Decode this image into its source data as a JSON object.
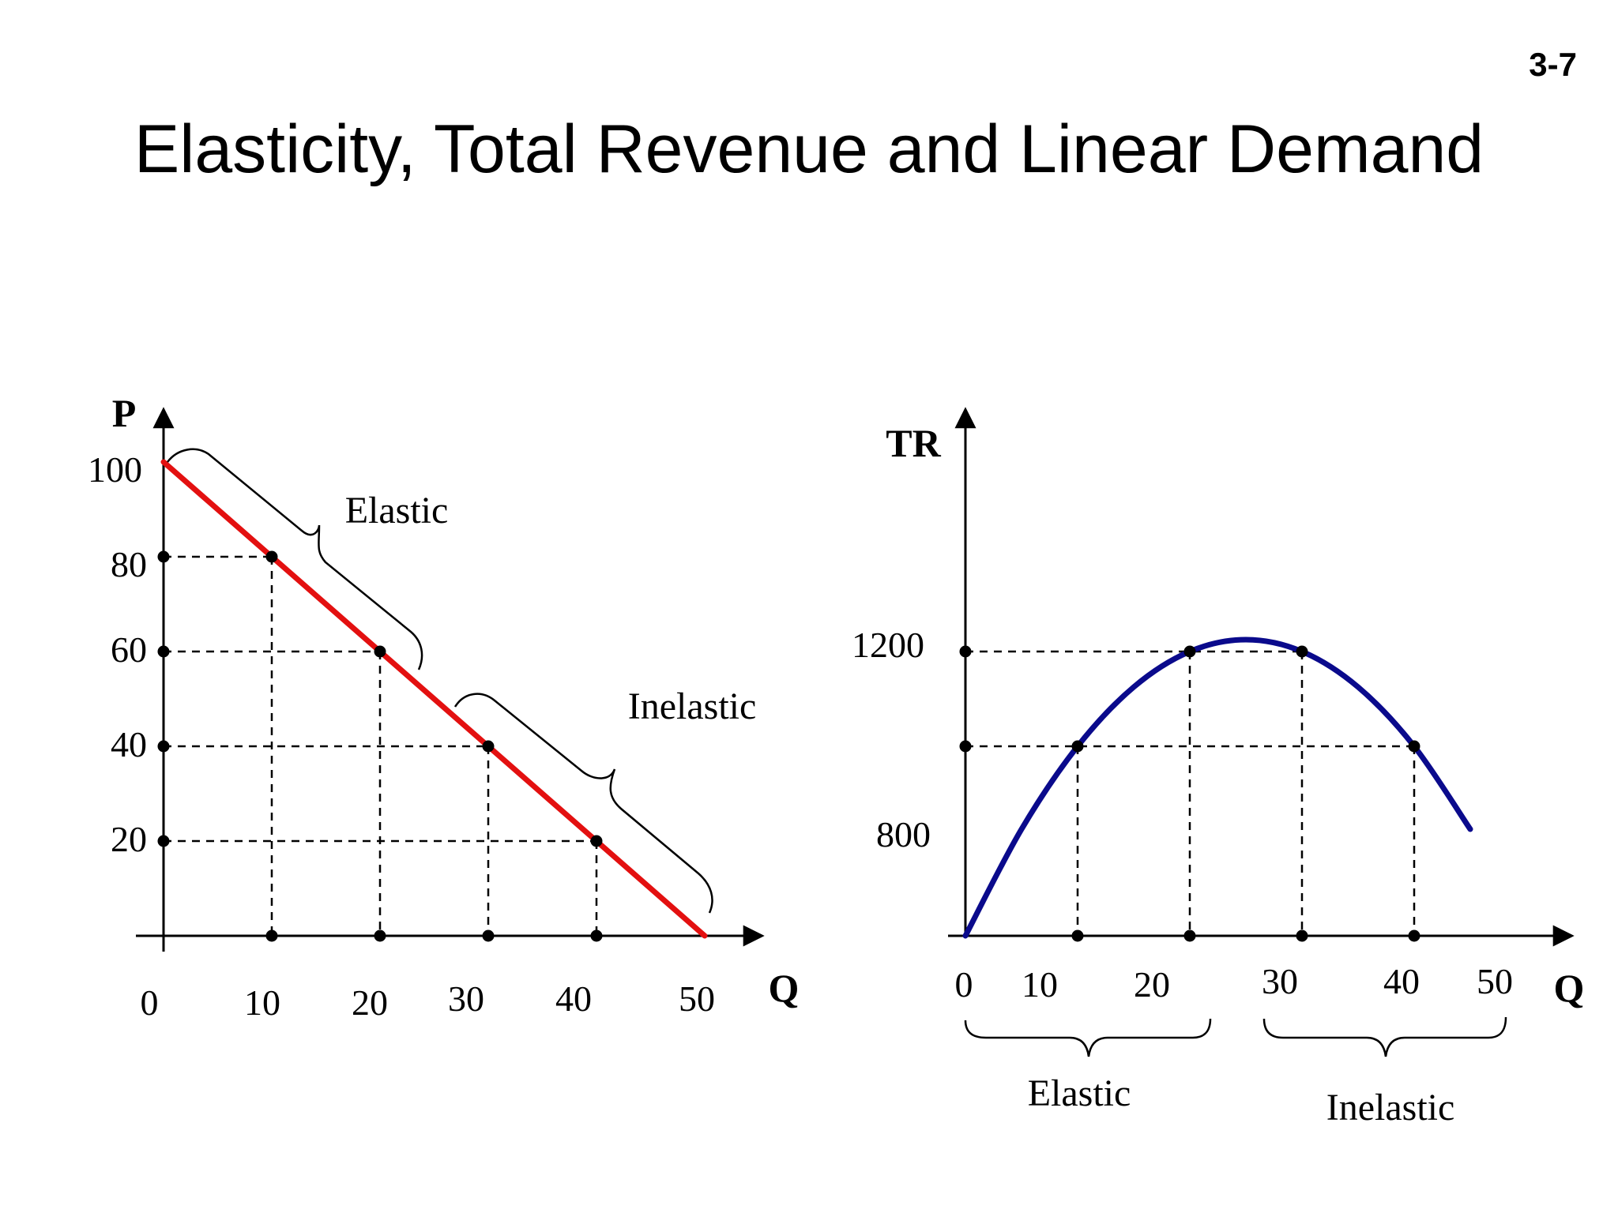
{
  "slide": {
    "number": "3-7",
    "title": "Elasticity, Total Revenue and Linear Demand"
  },
  "colors": {
    "demand_line": "#e31010",
    "tr_curve": "#0a0a8c",
    "axes": "#000000"
  },
  "chart_data": [
    {
      "type": "line",
      "name": "demand",
      "xlabel": "Q",
      "ylabel": "P",
      "xlim": [
        0,
        50
      ],
      "ylim": [
        0,
        100
      ],
      "x_ticks": [
        "0",
        "10",
        "20",
        "30",
        "40",
        "50"
      ],
      "y_ticks": [
        "20",
        "40",
        "60",
        "80",
        "100"
      ],
      "line": {
        "x": [
          0,
          50
        ],
        "y": [
          100,
          0
        ]
      },
      "points": [
        {
          "x": 10,
          "y": 80
        },
        {
          "x": 20,
          "y": 60
        },
        {
          "x": 30,
          "y": 40
        },
        {
          "x": 40,
          "y": 20
        }
      ],
      "regions": [
        "Elastic",
        "Inelastic"
      ]
    },
    {
      "type": "line",
      "name": "total_revenue",
      "xlabel": "Q",
      "ylabel": "TR",
      "xlim": [
        0,
        50
      ],
      "ylim": [
        0,
        1500
      ],
      "x_ticks": [
        "0",
        "10",
        "20",
        "30",
        "40",
        "50"
      ],
      "y_ticks": [
        "800",
        "1200"
      ],
      "curve": {
        "x": [
          0,
          5,
          10,
          15,
          20,
          25,
          30,
          35,
          40,
          45
        ],
        "y": [
          0,
          450,
          800,
          1050,
          1200,
          1250,
          1200,
          1050,
          800,
          450
        ]
      },
      "points": [
        {
          "x": 10,
          "y": 800
        },
        {
          "x": 20,
          "y": 1200
        },
        {
          "x": 30,
          "y": 1200
        },
        {
          "x": 40,
          "y": 800
        }
      ],
      "regions": [
        "Elastic",
        "Inelastic"
      ]
    }
  ]
}
